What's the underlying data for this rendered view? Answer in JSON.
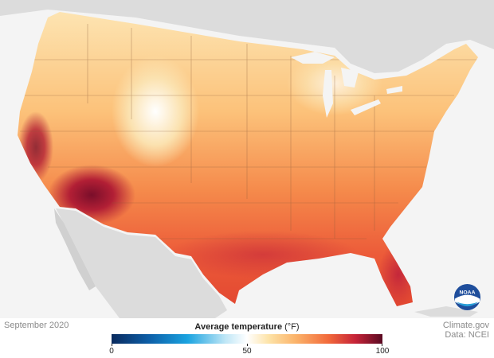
{
  "map": {
    "date_label": "September 2020",
    "credit_line1": "Climate.gov",
    "credit_line2": "Data: NCEI",
    "logo_text": "NOAA"
  },
  "legend": {
    "title": "Average temperature",
    "unit": "(°F)",
    "min": "0",
    "mid": "50",
    "max": "100",
    "colors": [
      "#0a2a5e",
      "#0d5fa8",
      "#1aa3e0",
      "#bfe6f6",
      "#ffffff",
      "#fde3a8",
      "#fbb36a",
      "#f26a3b",
      "#c62338",
      "#5a0a22"
    ]
  }
}
